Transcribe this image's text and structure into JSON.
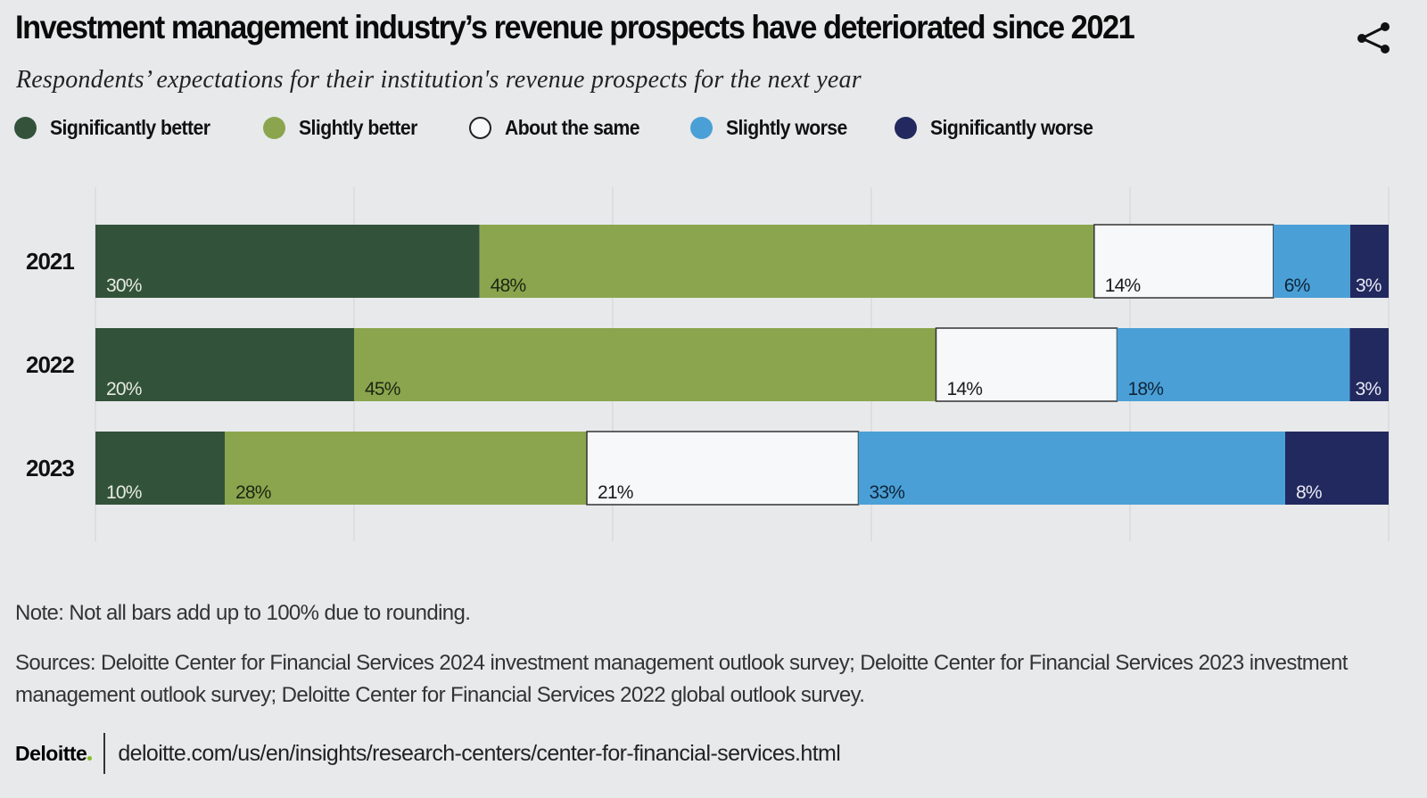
{
  "header": {
    "title": "Investment management industry’s revenue prospects have deteriorated since 2021",
    "subtitle": "Respondents’ expectations for their institution's revenue prospects for the next year",
    "share_icon": "share-icon"
  },
  "legend": [
    {
      "label": "Significantly better",
      "color": "#33523a"
    },
    {
      "label": "Slightly better",
      "color": "#8aa54d"
    },
    {
      "label": "About the same",
      "color": "#f7f8fa"
    },
    {
      "label": "Slightly worse",
      "color": "#4aa0d6"
    },
    {
      "label": "Significantly worse",
      "color": "#22295e"
    }
  ],
  "chart_data": {
    "type": "bar",
    "orientation": "horizontal",
    "stacked": true,
    "title": "Investment management industry’s revenue prospects have deteriorated since 2021",
    "subtitle": "Respondents’ expectations for their institution's revenue prospects for the next year",
    "xlabel": "",
    "ylabel": "",
    "xlim": [
      0,
      100
    ],
    "grid": true,
    "gridline_step": 20,
    "legend_position": "top-left",
    "categories": [
      "2021",
      "2022",
      "2023"
    ],
    "series": [
      {
        "name": "Significantly better",
        "color": "#33523a",
        "label_color": "#e6ebe2",
        "values": [
          30,
          20,
          10
        ],
        "labels": [
          "30%",
          "20%",
          "10%"
        ]
      },
      {
        "name": "Slightly better",
        "color": "#8aa54d",
        "label_color": "#1c2614",
        "values": [
          48,
          45,
          28
        ],
        "labels": [
          "48%",
          "45%",
          "28%"
        ]
      },
      {
        "name": "About the same",
        "color": "#f7f8fa",
        "label_color": "#1a1a1a",
        "values": [
          14,
          14,
          21
        ],
        "labels": [
          "14%",
          "14%",
          "21%"
        ]
      },
      {
        "name": "Slightly worse",
        "color": "#4aa0d6",
        "label_color": "#10243a",
        "values": [
          6,
          18,
          33
        ],
        "labels": [
          "6%",
          "18%",
          "33%"
        ]
      },
      {
        "name": "Significantly worse",
        "color": "#22295e",
        "label_color": "#e8eaf3",
        "values": [
          3,
          3,
          8
        ],
        "labels": [
          "3%",
          "3%",
          "8%"
        ]
      }
    ]
  },
  "footer": {
    "note": "Note: Not all bars add up to 100% due to rounding.",
    "sources": "Sources: Deloitte Center for Financial Services 2024 investment management outlook survey; Deloitte Center for Financial Services 2023 investment management outlook survey; Deloitte Center for Financial Services 2022 global outlook survey.",
    "logo": "Deloitte",
    "url": "deloitte.com/us/en/insights/research-centers/center-for-financial-services.html"
  }
}
